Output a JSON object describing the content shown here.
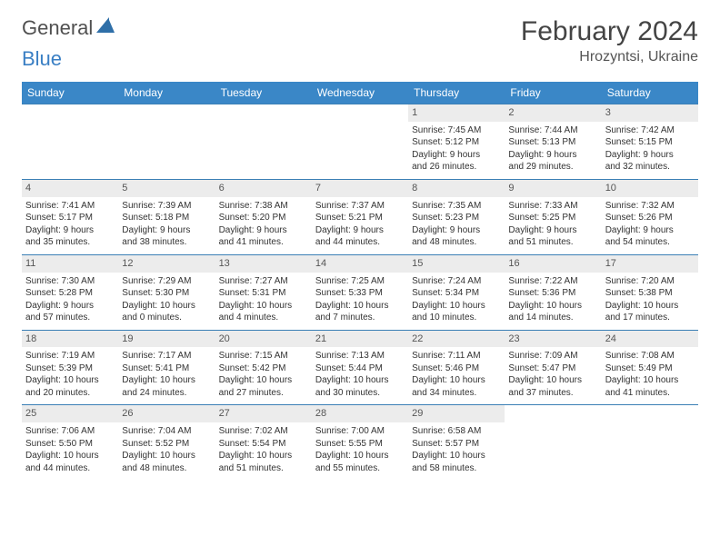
{
  "brand": {
    "part1": "General",
    "part2": "Blue"
  },
  "title": "February 2024",
  "location": "Hrozyntsi, Ukraine",
  "colors": {
    "header_bg": "#3a87c7",
    "week_border": "#3a7fb5",
    "daynum_bg": "#ececec",
    "brand_blue": "#3a7fc4"
  },
  "dayNames": [
    "Sunday",
    "Monday",
    "Tuesday",
    "Wednesday",
    "Thursday",
    "Friday",
    "Saturday"
  ],
  "weeks": [
    [
      null,
      null,
      null,
      null,
      {
        "n": "1",
        "sr": "Sunrise: 7:45 AM",
        "ss": "Sunset: 5:12 PM",
        "d1": "Daylight: 9 hours",
        "d2": "and 26 minutes."
      },
      {
        "n": "2",
        "sr": "Sunrise: 7:44 AM",
        "ss": "Sunset: 5:13 PM",
        "d1": "Daylight: 9 hours",
        "d2": "and 29 minutes."
      },
      {
        "n": "3",
        "sr": "Sunrise: 7:42 AM",
        "ss": "Sunset: 5:15 PM",
        "d1": "Daylight: 9 hours",
        "d2": "and 32 minutes."
      }
    ],
    [
      {
        "n": "4",
        "sr": "Sunrise: 7:41 AM",
        "ss": "Sunset: 5:17 PM",
        "d1": "Daylight: 9 hours",
        "d2": "and 35 minutes."
      },
      {
        "n": "5",
        "sr": "Sunrise: 7:39 AM",
        "ss": "Sunset: 5:18 PM",
        "d1": "Daylight: 9 hours",
        "d2": "and 38 minutes."
      },
      {
        "n": "6",
        "sr": "Sunrise: 7:38 AM",
        "ss": "Sunset: 5:20 PM",
        "d1": "Daylight: 9 hours",
        "d2": "and 41 minutes."
      },
      {
        "n": "7",
        "sr": "Sunrise: 7:37 AM",
        "ss": "Sunset: 5:21 PM",
        "d1": "Daylight: 9 hours",
        "d2": "and 44 minutes."
      },
      {
        "n": "8",
        "sr": "Sunrise: 7:35 AM",
        "ss": "Sunset: 5:23 PM",
        "d1": "Daylight: 9 hours",
        "d2": "and 48 minutes."
      },
      {
        "n": "9",
        "sr": "Sunrise: 7:33 AM",
        "ss": "Sunset: 5:25 PM",
        "d1": "Daylight: 9 hours",
        "d2": "and 51 minutes."
      },
      {
        "n": "10",
        "sr": "Sunrise: 7:32 AM",
        "ss": "Sunset: 5:26 PM",
        "d1": "Daylight: 9 hours",
        "d2": "and 54 minutes."
      }
    ],
    [
      {
        "n": "11",
        "sr": "Sunrise: 7:30 AM",
        "ss": "Sunset: 5:28 PM",
        "d1": "Daylight: 9 hours",
        "d2": "and 57 minutes."
      },
      {
        "n": "12",
        "sr": "Sunrise: 7:29 AM",
        "ss": "Sunset: 5:30 PM",
        "d1": "Daylight: 10 hours",
        "d2": "and 0 minutes."
      },
      {
        "n": "13",
        "sr": "Sunrise: 7:27 AM",
        "ss": "Sunset: 5:31 PM",
        "d1": "Daylight: 10 hours",
        "d2": "and 4 minutes."
      },
      {
        "n": "14",
        "sr": "Sunrise: 7:25 AM",
        "ss": "Sunset: 5:33 PM",
        "d1": "Daylight: 10 hours",
        "d2": "and 7 minutes."
      },
      {
        "n": "15",
        "sr": "Sunrise: 7:24 AM",
        "ss": "Sunset: 5:34 PM",
        "d1": "Daylight: 10 hours",
        "d2": "and 10 minutes."
      },
      {
        "n": "16",
        "sr": "Sunrise: 7:22 AM",
        "ss": "Sunset: 5:36 PM",
        "d1": "Daylight: 10 hours",
        "d2": "and 14 minutes."
      },
      {
        "n": "17",
        "sr": "Sunrise: 7:20 AM",
        "ss": "Sunset: 5:38 PM",
        "d1": "Daylight: 10 hours",
        "d2": "and 17 minutes."
      }
    ],
    [
      {
        "n": "18",
        "sr": "Sunrise: 7:19 AM",
        "ss": "Sunset: 5:39 PM",
        "d1": "Daylight: 10 hours",
        "d2": "and 20 minutes."
      },
      {
        "n": "19",
        "sr": "Sunrise: 7:17 AM",
        "ss": "Sunset: 5:41 PM",
        "d1": "Daylight: 10 hours",
        "d2": "and 24 minutes."
      },
      {
        "n": "20",
        "sr": "Sunrise: 7:15 AM",
        "ss": "Sunset: 5:42 PM",
        "d1": "Daylight: 10 hours",
        "d2": "and 27 minutes."
      },
      {
        "n": "21",
        "sr": "Sunrise: 7:13 AM",
        "ss": "Sunset: 5:44 PM",
        "d1": "Daylight: 10 hours",
        "d2": "and 30 minutes."
      },
      {
        "n": "22",
        "sr": "Sunrise: 7:11 AM",
        "ss": "Sunset: 5:46 PM",
        "d1": "Daylight: 10 hours",
        "d2": "and 34 minutes."
      },
      {
        "n": "23",
        "sr": "Sunrise: 7:09 AM",
        "ss": "Sunset: 5:47 PM",
        "d1": "Daylight: 10 hours",
        "d2": "and 37 minutes."
      },
      {
        "n": "24",
        "sr": "Sunrise: 7:08 AM",
        "ss": "Sunset: 5:49 PM",
        "d1": "Daylight: 10 hours",
        "d2": "and 41 minutes."
      }
    ],
    [
      {
        "n": "25",
        "sr": "Sunrise: 7:06 AM",
        "ss": "Sunset: 5:50 PM",
        "d1": "Daylight: 10 hours",
        "d2": "and 44 minutes."
      },
      {
        "n": "26",
        "sr": "Sunrise: 7:04 AM",
        "ss": "Sunset: 5:52 PM",
        "d1": "Daylight: 10 hours",
        "d2": "and 48 minutes."
      },
      {
        "n": "27",
        "sr": "Sunrise: 7:02 AM",
        "ss": "Sunset: 5:54 PM",
        "d1": "Daylight: 10 hours",
        "d2": "and 51 minutes."
      },
      {
        "n": "28",
        "sr": "Sunrise: 7:00 AM",
        "ss": "Sunset: 5:55 PM",
        "d1": "Daylight: 10 hours",
        "d2": "and 55 minutes."
      },
      {
        "n": "29",
        "sr": "Sunrise: 6:58 AM",
        "ss": "Sunset: 5:57 PM",
        "d1": "Daylight: 10 hours",
        "d2": "and 58 minutes."
      },
      null,
      null
    ]
  ]
}
